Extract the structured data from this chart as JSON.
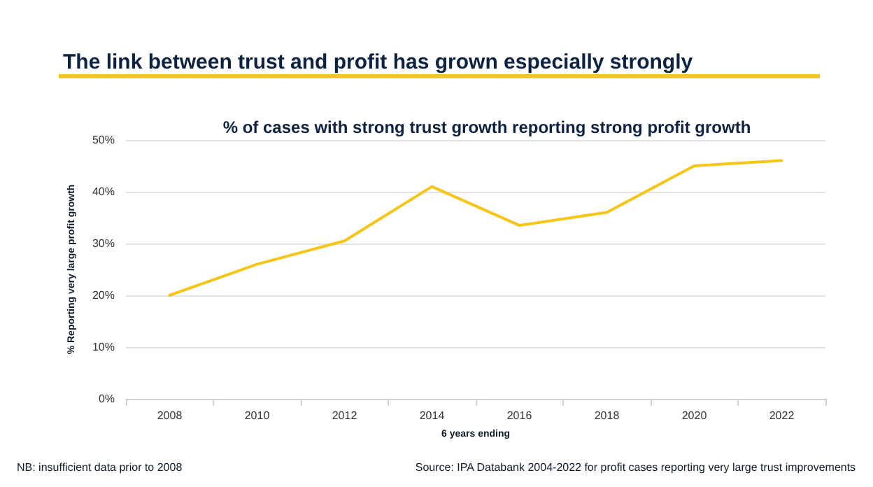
{
  "chart_data": {
    "type": "line",
    "title": "The link between trust and profit has grown especially strongly",
    "subtitle": "% of cases with strong trust growth reporting strong profit growth",
    "xlabel": "6 years ending",
    "ylabel": "% Reporting very large profit growth",
    "categories": [
      "2008",
      "2010",
      "2012",
      "2014",
      "2016",
      "2018",
      "2020",
      "2022"
    ],
    "series": [
      {
        "color": "#f5c518",
        "values": [
          20,
          26,
          30.5,
          41,
          33.5,
          36,
          45,
          46
        ]
      }
    ],
    "ylim": [
      0,
      50
    ],
    "yticks": [
      {
        "value": 0,
        "label": "0%"
      },
      {
        "value": 10,
        "label": "10%"
      },
      {
        "value": 20,
        "label": "20%"
      },
      {
        "value": 30,
        "label": "30%"
      },
      {
        "value": 40,
        "label": "40%"
      },
      {
        "value": 50,
        "label": "50%"
      }
    ],
    "grid": "y",
    "marker": "none",
    "line_style": "solid",
    "annotations": [
      "NB: insufficient data prior to 2008",
      "Source: IPA Databank 2004-2022 for profit cases reporting very large trust improvements"
    ]
  }
}
